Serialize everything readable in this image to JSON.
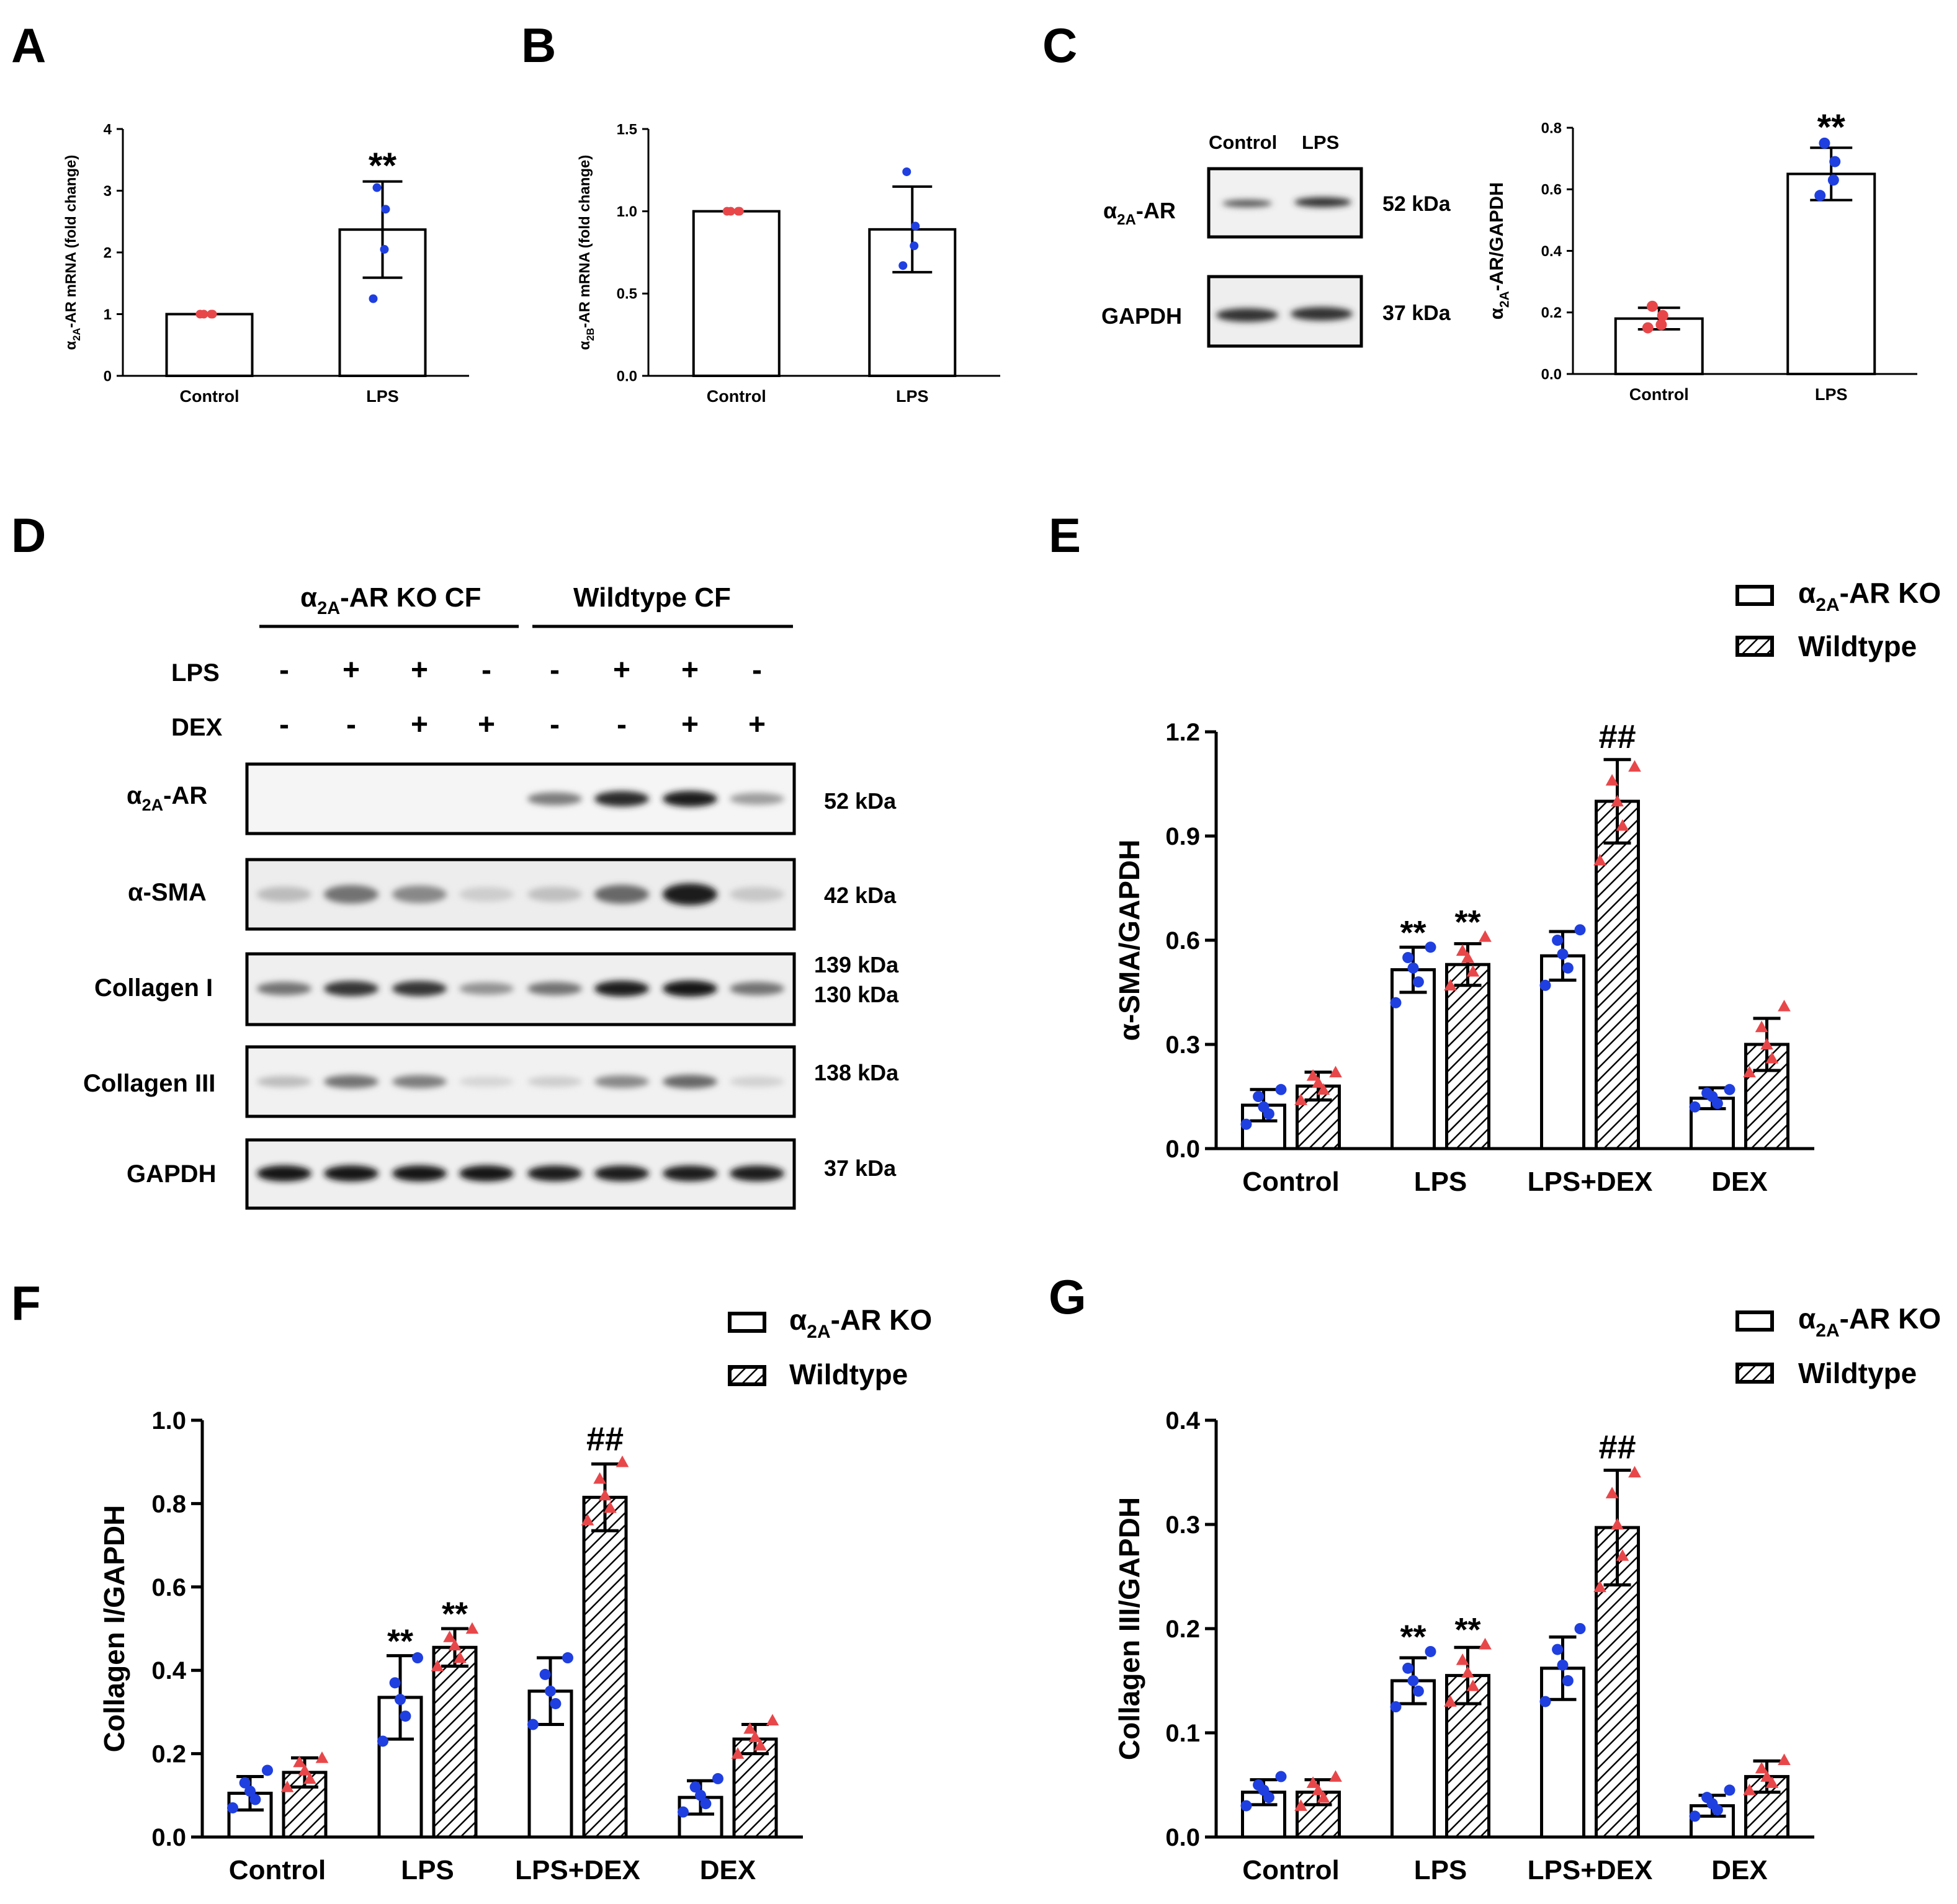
{
  "fig": {
    "letters": {
      "A": "A",
      "B": "B",
      "C": "C",
      "D": "D",
      "E": "E",
      "F": "F",
      "G": "G"
    }
  },
  "kda": {
    "k52": "52 kDa",
    "k37": "37 kDa",
    "k42": "42 kDa",
    "k139": "139 kDa",
    "k130": "130 kDa",
    "k138": "138 kDa"
  },
  "blot_c": {
    "lanes": [
      "Control",
      "LPS"
    ],
    "rows": [
      {
        "sym": "α",
        "sub": "2A",
        "rest": "-AR"
      },
      {
        "text": "GAPDH"
      }
    ]
  },
  "blot_d": {
    "groups": [
      {
        "sym": "α",
        "sub": "2A",
        "rest": "-AR KO CF"
      },
      {
        "text": "Wildtype CF"
      }
    ],
    "treat_labels": [
      "LPS",
      "DEX"
    ],
    "lps": [
      "-",
      "+",
      "+",
      "-",
      "-",
      "+",
      "+",
      "-"
    ],
    "dex": [
      "-",
      "-",
      "+",
      "+",
      "-",
      "-",
      "+",
      "+"
    ],
    "rows": [
      {
        "sym": "α",
        "sub": "2A",
        "rest": "-AR"
      },
      {
        "text": "α-SMA"
      },
      {
        "text": "Collagen I"
      },
      {
        "text": "Collagen III"
      },
      {
        "text": "GAPDH"
      }
    ]
  },
  "legend": {
    "sym": "α",
    "sub": "2A",
    "rest": "-AR KO",
    "wt": "Wildtype"
  },
  "colors": {
    "blue": "#1f3fe0",
    "red": "#e8474a",
    "black": "#000000"
  },
  "chart_data": [
    {
      "id": "A",
      "type": "bar",
      "categories": [
        "Control",
        "LPS"
      ],
      "values": [
        1.0,
        2.37
      ],
      "errors": [
        0,
        0.78
      ],
      "points": [
        [
          1,
          1,
          1,
          1
        ],
        [
          1.25,
          2.05,
          2.7,
          3.05
        ]
      ],
      "point_colors": [
        "red",
        "blue"
      ],
      "ylabel": {
        "pre": "α",
        "sub": "2A",
        "rest": "-AR mRNA (fold change)"
      },
      "ylim": [
        0,
        4
      ],
      "yticks": [
        "0",
        "1",
        "2",
        "3",
        "4"
      ],
      "annotations": [
        {
          "text": "**",
          "category": "LPS"
        }
      ]
    },
    {
      "id": "B",
      "type": "bar",
      "categories": [
        "Control",
        "LPS"
      ],
      "values": [
        1.0,
        0.89
      ],
      "errors": [
        0,
        0.26
      ],
      "points": [
        [
          1,
          1,
          1,
          1
        ],
        [
          0.67,
          0.79,
          0.91,
          1.24
        ]
      ],
      "point_colors": [
        "red",
        "blue"
      ],
      "ylabel": {
        "pre": "α",
        "sub": "2B",
        "rest": "-AR mRNA (fold change)"
      },
      "ylim": [
        0,
        1.5
      ],
      "yticks": [
        "0.0",
        "0.5",
        "1.0",
        "1.5"
      ],
      "annotations": []
    },
    {
      "id": "C",
      "type": "bar",
      "categories": [
        "Control",
        "LPS"
      ],
      "values": [
        0.18,
        0.65
      ],
      "errors": [
        0.035,
        0.085
      ],
      "points": [
        [
          0.15,
          0.16,
          0.19,
          0.22
        ],
        [
          0.58,
          0.63,
          0.69,
          0.75
        ]
      ],
      "point_colors": [
        "red",
        "blue"
      ],
      "ylabel": {
        "pre": "α",
        "sub": "2A",
        "rest": "-AR/GAPDH"
      },
      "ylim": [
        0,
        0.8
      ],
      "yticks": [
        "0.0",
        "0.2",
        "0.4",
        "0.6",
        "0.8"
      ],
      "annotations": [
        {
          "text": "**",
          "category": "LPS"
        }
      ]
    },
    {
      "id": "E",
      "type": "bar",
      "categories": [
        "Control",
        "LPS",
        "LPS+DEX",
        "DEX"
      ],
      "series": [
        {
          "name": "α2A-AR KO",
          "values": [
            0.125,
            0.515,
            0.555,
            0.145
          ],
          "errors": [
            0.045,
            0.065,
            0.07,
            0.03
          ],
          "points": [
            [
              0.07,
              0.1,
              0.12,
              0.15,
              0.17
            ],
            [
              0.42,
              0.48,
              0.52,
              0.55,
              0.58
            ],
            [
              0.47,
              0.52,
              0.56,
              0.6,
              0.63
            ],
            [
              0.12,
              0.13,
              0.15,
              0.16,
              0.17
            ]
          ]
        },
        {
          "name": "Wildtype",
          "values": [
            0.18,
            0.53,
            1.0,
            0.3
          ],
          "errors": [
            0.04,
            0.06,
            0.12,
            0.075
          ],
          "points": [
            [
              0.14,
              0.17,
              0.19,
              0.21,
              0.22
            ],
            [
              0.47,
              0.51,
              0.55,
              0.57,
              0.61
            ],
            [
              0.83,
              0.93,
              1.0,
              1.06,
              1.1
            ],
            [
              0.22,
              0.26,
              0.3,
              0.35,
              0.41
            ]
          ]
        }
      ],
      "ylabel": "α-SMA/GAPDH",
      "ylim": [
        0,
        1.2
      ],
      "yticks": [
        "0.0",
        "0.3",
        "0.6",
        "0.9",
        "1.2"
      ],
      "annotations": [
        {
          "text": "**",
          "category": "LPS",
          "series": 0
        },
        {
          "text": "**",
          "category": "LPS",
          "series": 1
        },
        {
          "text": "##",
          "category": "LPS+DEX",
          "series": 1
        }
      ]
    },
    {
      "id": "F",
      "type": "bar",
      "categories": [
        "Control",
        "LPS",
        "LPS+DEX",
        "DEX"
      ],
      "series": [
        {
          "name": "α2A-AR KO",
          "values": [
            0.105,
            0.335,
            0.35,
            0.095
          ],
          "errors": [
            0.04,
            0.1,
            0.08,
            0.04
          ],
          "points": [
            [
              0.07,
              0.09,
              0.11,
              0.13,
              0.16
            ],
            [
              0.23,
              0.29,
              0.33,
              0.37,
              0.43
            ],
            [
              0.27,
              0.32,
              0.35,
              0.39,
              0.43
            ],
            [
              0.06,
              0.08,
              0.1,
              0.12,
              0.14
            ]
          ]
        },
        {
          "name": "Wildtype",
          "values": [
            0.155,
            0.455,
            0.815,
            0.235
          ],
          "errors": [
            0.035,
            0.045,
            0.08,
            0.035
          ],
          "points": [
            [
              0.12,
              0.14,
              0.16,
              0.18,
              0.19
            ],
            [
              0.41,
              0.43,
              0.46,
              0.48,
              0.5
            ],
            [
              0.76,
              0.79,
              0.82,
              0.86,
              0.9
            ],
            [
              0.2,
              0.22,
              0.24,
              0.26,
              0.28
            ]
          ]
        }
      ],
      "ylabel": "Collagen I/GAPDH",
      "ylim": [
        0,
        1.0
      ],
      "yticks": [
        "0.0",
        "0.2",
        "0.4",
        "0.6",
        "0.8",
        "1.0"
      ],
      "annotations": [
        {
          "text": "**",
          "category": "LPS",
          "series": 0
        },
        {
          "text": "**",
          "category": "LPS",
          "series": 1
        },
        {
          "text": "##",
          "category": "LPS+DEX",
          "series": 1
        }
      ]
    },
    {
      "id": "G",
      "type": "bar",
      "categories": [
        "Control",
        "LPS",
        "LPS+DEX",
        "DEX"
      ],
      "series": [
        {
          "name": "α2A-AR KO",
          "values": [
            0.043,
            0.15,
            0.162,
            0.03
          ],
          "errors": [
            0.012,
            0.022,
            0.03,
            0.01
          ],
          "points": [
            [
              0.03,
              0.038,
              0.045,
              0.05,
              0.058
            ],
            [
              0.125,
              0.14,
              0.15,
              0.162,
              0.178
            ],
            [
              0.13,
              0.15,
              0.165,
              0.18,
              0.2
            ],
            [
              0.02,
              0.026,
              0.032,
              0.038,
              0.045
            ]
          ]
        },
        {
          "name": "Wildtype",
          "values": [
            0.043,
            0.155,
            0.297,
            0.058
          ],
          "errors": [
            0.012,
            0.027,
            0.055,
            0.015
          ],
          "points": [
            [
              0.03,
              0.038,
              0.045,
              0.052,
              0.058
            ],
            [
              0.13,
              0.145,
              0.158,
              0.17,
              0.185
            ],
            [
              0.24,
              0.27,
              0.3,
              0.33,
              0.35
            ],
            [
              0.045,
              0.052,
              0.058,
              0.066,
              0.074
            ]
          ]
        }
      ],
      "ylabel": "Collagen III/GAPDH",
      "ylim": [
        0,
        0.4
      ],
      "yticks": [
        "0.0",
        "0.1",
        "0.2",
        "0.3",
        "0.4"
      ],
      "annotations": [
        {
          "text": "**",
          "category": "LPS",
          "series": 0
        },
        {
          "text": "**",
          "category": "LPS",
          "series": 1
        },
        {
          "text": "##",
          "category": "LPS+DEX",
          "series": 1
        }
      ]
    }
  ]
}
